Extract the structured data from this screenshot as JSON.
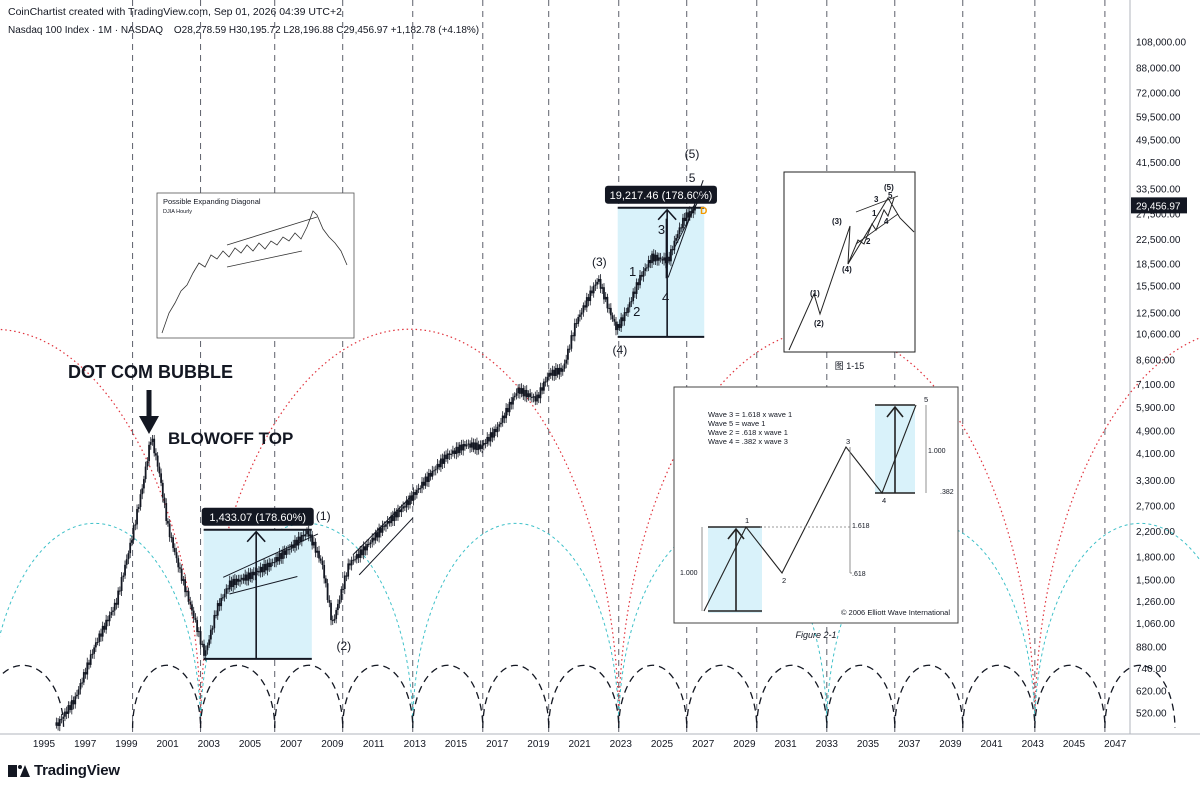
{
  "header": {
    "created": "CoinChartist created with TradingView.com, Sep 01, 2026 04:39 UTC+2",
    "symbol": "Nasdaq 100 Index · 1M · NASDAQ",
    "ohlc": "O28,278.59  H30,195.72  L28,196.88  C29,456.97  +1,182.78 (+4.18%)"
  },
  "footer": {
    "brand": "TradingView"
  },
  "colors": {
    "candle": "#131722",
    "box_fill": "#d9f2fa",
    "label_bg": "#131722",
    "cycle_red": "#e0323c",
    "cycle_teal": "#3fc1c9",
    "cycle_black": "#131722",
    "price_tag": "#131722"
  },
  "chart_data": {
    "type": "line",
    "title": "Nasdaq 100 Index · 1M · NASDAQ",
    "scale": "log",
    "x_ticks": [
      "1995",
      "1997",
      "1999",
      "2001",
      "2003",
      "2005",
      "2007",
      "2009",
      "2011",
      "2013",
      "2015",
      "2017",
      "2019",
      "2021",
      "2023",
      "2025",
      "2027",
      "2029",
      "2031",
      "2033",
      "2035",
      "2037",
      "2039",
      "2041",
      "2043",
      "2045",
      "2047"
    ],
    "y_ticks": [
      "108,000.00",
      "88,000.00",
      "72,000.00",
      "59,500.00",
      "49,500.00",
      "41,500.00",
      "33,500.00",
      "27,500.00",
      "22,500.00",
      "18,500.00",
      "15,500.00",
      "12,500.00",
      "10,600.00",
      "8,600.00",
      "7,100.00",
      "5,900.00",
      "4,900.00",
      "4,100.00",
      "3,300.00",
      "2,700.00",
      "2,200.00",
      "1,800.00",
      "1,500.00",
      "1,260.00",
      "1,060.00",
      "880.00",
      "740.00",
      "620.00",
      "520.00"
    ],
    "last_price": "29,456.97",
    "series": [
      {
        "points": [
          [
            1995.6,
            470
          ],
          [
            1996.5,
            580
          ],
          [
            1997.5,
            900
          ],
          [
            1998.5,
            1250
          ],
          [
            1999.2,
            2000
          ],
          [
            1999.8,
            3200
          ],
          [
            2000.2,
            4700
          ],
          [
            2000.6,
            3500
          ],
          [
            2001.0,
            2300
          ],
          [
            2001.6,
            1600
          ],
          [
            2002.3,
            1100
          ],
          [
            2002.8,
            820
          ],
          [
            2003.4,
            1200
          ],
          [
            2004.0,
            1450
          ],
          [
            2005.0,
            1550
          ],
          [
            2006.0,
            1700
          ],
          [
            2007.0,
            1950
          ],
          [
            2007.8,
            2200
          ],
          [
            2008.5,
            1700
          ],
          [
            2009.0,
            1050
          ],
          [
            2009.8,
            1700
          ],
          [
            2010.5,
            1900
          ],
          [
            2011.5,
            2300
          ],
          [
            2012.5,
            2700
          ],
          [
            2013.5,
            3300
          ],
          [
            2014.5,
            4000
          ],
          [
            2015.5,
            4400
          ],
          [
            2016.2,
            4300
          ],
          [
            2017.0,
            5000
          ],
          [
            2018.0,
            6800
          ],
          [
            2018.9,
            6300
          ],
          [
            2019.5,
            7700
          ],
          [
            2020.2,
            8000
          ],
          [
            2020.8,
            11500
          ],
          [
            2021.5,
            14500
          ],
          [
            2021.9,
            16400
          ],
          [
            2022.4,
            13000
          ],
          [
            2022.8,
            11000
          ],
          [
            2023.3,
            12800
          ],
          [
            2023.9,
            16400
          ],
          [
            2024.5,
            19500
          ],
          [
            2025.3,
            19000
          ],
          [
            2025.7,
            23000
          ],
          [
            2026.1,
            26800
          ],
          [
            2026.5,
            28200
          ],
          [
            2026.67,
            29456.97
          ]
        ]
      }
    ],
    "annotations": [
      {
        "text": "DOT COM BUBBLE"
      },
      {
        "text": "BLOWOFF TOP"
      },
      {
        "text": "1,433.07 (178.60%)"
      },
      {
        "text": "19,217.46 (178.60%)"
      },
      {
        "text": "(1)"
      },
      {
        "text": "(2)"
      },
      {
        "text": "(3)"
      },
      {
        "text": "(4)"
      },
      {
        "text": "(5)"
      },
      {
        "text": "1"
      },
      {
        "text": "2"
      },
      {
        "text": "3"
      },
      {
        "text": "4"
      },
      {
        "text": "5"
      },
      {
        "text": "D"
      }
    ],
    "cycle_lines_years": [
      1999.3,
      2002.6,
      2006.2,
      2009.5,
      2012.9,
      2016.3,
      2019.5,
      2022.9,
      2026.2,
      2029.6,
      2033.0,
      2036.3,
      2039.6,
      2043.1,
      2046.5
    ]
  },
  "insets": {
    "expanding": {
      "title": "Possible Expanding Diagonal",
      "subtitle": "DJIA Hourly"
    },
    "elliott_small": {
      "caption": "图  1-15",
      "labels": [
        "(1)",
        "(2)",
        "(3)",
        "(4)",
        "(5)",
        "1",
        "2",
        "3",
        "4",
        "5"
      ]
    },
    "figure21": {
      "lines": [
        "Wave 3 = 1.618 x wave 1",
        "Wave 5 = wave 1",
        "Wave 2 = .618 x wave 1",
        "Wave 4 = .382 x wave 3"
      ],
      "ratios": [
        "1.000",
        "1.618",
        ".618",
        "1.000",
        ".382"
      ],
      "wave_labels": [
        "1",
        "2",
        "3",
        "4",
        "5"
      ],
      "copyright": "© 2006 Elliott Wave International",
      "caption": "Figure 2-1"
    }
  }
}
